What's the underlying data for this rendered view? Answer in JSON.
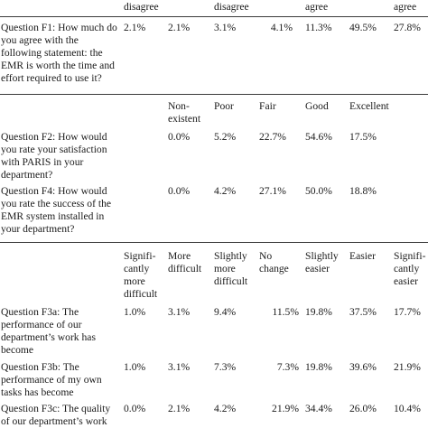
{
  "section1": {
    "headers": [
      "disagree",
      "disagree",
      "agree",
      "agree"
    ],
    "question": "Question F1: How much do you agree with the following statement: the EMR is worth the time and effort required to use it?",
    "values": [
      "2.1%",
      "2.1%",
      "3.1%",
      "4.1%",
      "11.3%",
      "49.5%",
      "27.8%"
    ]
  },
  "section2": {
    "headers": [
      "Non-existent",
      "Poor",
      "Fair",
      "Good",
      "Excellent"
    ],
    "rows": [
      {
        "question": "Question F2: How would you rate your satisfaction with PARIS in your department?",
        "values": [
          "0.0%",
          "5.2%",
          "22.7%",
          "54.6%",
          "17.5%"
        ]
      },
      {
        "question": "Question F4: How would you rate the success of the EMR system installed in your department?",
        "values": [
          "0.0%",
          "4.2%",
          "27.1%",
          "50.0%",
          "18.8%"
        ]
      }
    ]
  },
  "section3": {
    "headers": [
      "Signifi-cantly more difficult",
      "More difficult",
      "Slightly more difficult",
      "No change",
      "Slightly easier",
      "Easier",
      "Signifi-cantly easier"
    ],
    "rows": [
      {
        "question": "Question F3a: The performance of our department’s work has become",
        "values": [
          "1.0%",
          "3.1%",
          "9.4%",
          "11.5%",
          "19.8%",
          "37.5%",
          "17.7%"
        ]
      },
      {
        "question": "Question F3b: The performance of my own tasks has become",
        "values": [
          "1.0%",
          "3.1%",
          "7.3%",
          "7.3%",
          "19.8%",
          "39.6%",
          "21.9%"
        ]
      },
      {
        "question": "Question F3c: The quality of our department’s work",
        "values": [
          "0.0%",
          "2.1%",
          "4.2%",
          "21.9%",
          "34.4%",
          "26.0%",
          "10.4%"
        ]
      }
    ]
  }
}
